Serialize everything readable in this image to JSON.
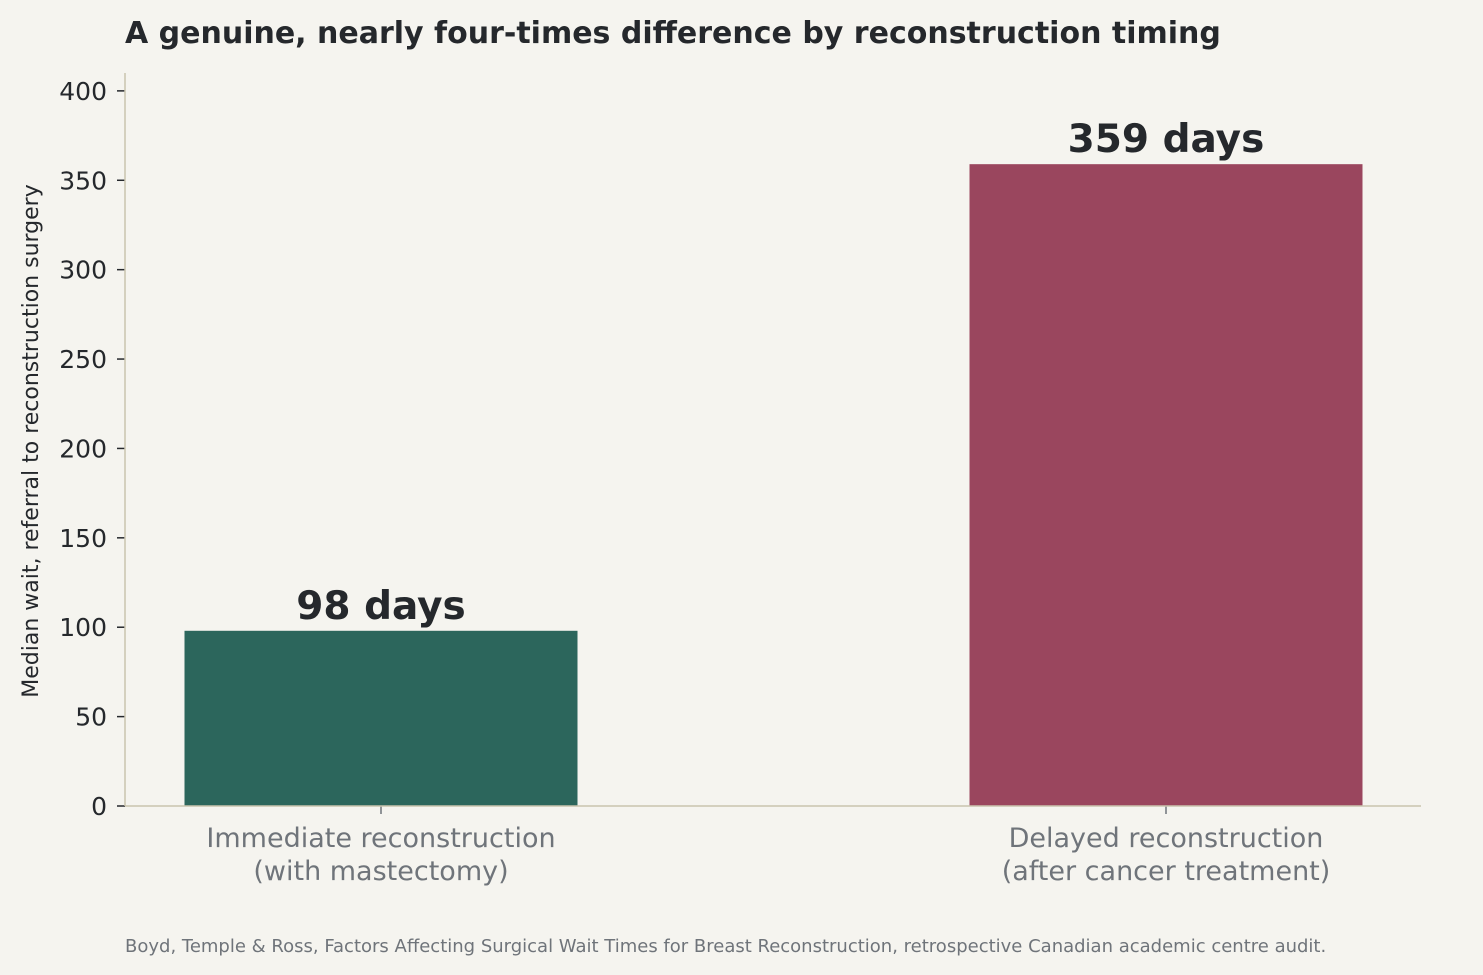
{
  "chart_data": {
    "type": "bar",
    "title": "A genuine, nearly four-times difference by reconstruction timing",
    "ylabel": "Median wait, referral to reconstruction surgery",
    "xlabel": "",
    "categories": [
      [
        "Immediate reconstruction",
        "(with mastectomy)"
      ],
      [
        "Delayed reconstruction",
        "(after cancer treatment)"
      ]
    ],
    "values": [
      98,
      359
    ],
    "data_labels": [
      "98 days",
      "359 days"
    ],
    "colors": [
      "#2c665c",
      "#9a465e"
    ],
    "ylim": [
      0,
      410
    ],
    "yticks": [
      0,
      50,
      100,
      150,
      200,
      250,
      300,
      350,
      400
    ],
    "grid": false,
    "source": "Boyd, Temple & Ross, Factors Affecting Surgical Wait Times for Breast Reconstruction, retrospective Canadian academic centre audit."
  }
}
